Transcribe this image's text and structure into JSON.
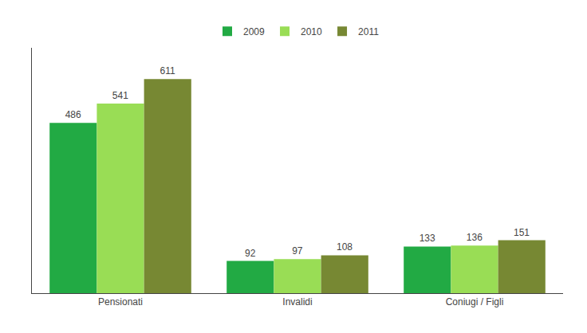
{
  "chart_data": {
    "type": "bar",
    "categories": [
      "Pensionati",
      "Invalidi",
      "Coniugi / Figli"
    ],
    "series": [
      {
        "name": "2009",
        "color": "#22aa44",
        "values": [
          486,
          92,
          133
        ]
      },
      {
        "name": "2010",
        "color": "#99dd55",
        "values": [
          541,
          97,
          136
        ]
      },
      {
        "name": "2011",
        "color": "#778833",
        "values": [
          611,
          108,
          151
        ]
      }
    ],
    "ylim": [
      0,
      700
    ],
    "grid": false,
    "legend": "top",
    "data_labels": true,
    "tick_labels": "x"
  }
}
